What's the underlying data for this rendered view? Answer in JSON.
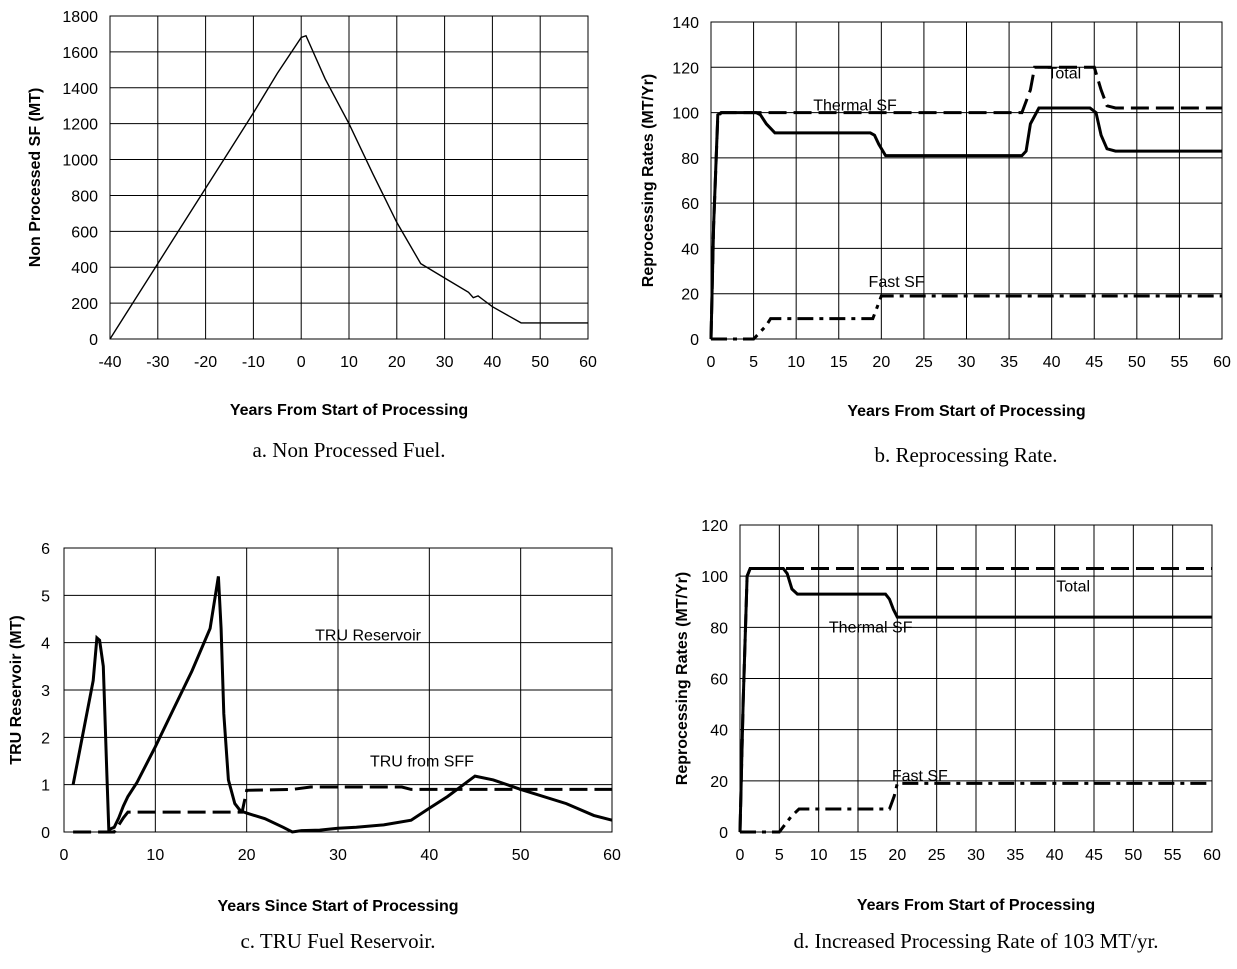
{
  "chart_data": [
    {
      "type": "line",
      "xlabel": "Years From Start of Processing",
      "ylabel": "Non Processed SF (MT)",
      "caption": "a. Non Processed Fuel.",
      "xlim": [
        -40,
        60
      ],
      "ylim": [
        0,
        1800
      ],
      "xticks": [
        -40,
        -30,
        -20,
        -10,
        0,
        10,
        20,
        30,
        40,
        50,
        60
      ],
      "yticks": [
        0,
        200,
        400,
        600,
        800,
        1000,
        1200,
        1400,
        1600,
        1800
      ],
      "grid": true,
      "series": [
        {
          "style": "thin",
          "x": [
            -40,
            -35,
            -30,
            -25,
            -20,
            -15,
            -10,
            -5,
            0,
            1,
            5,
            10,
            15,
            20,
            25,
            30,
            35,
            36,
            37,
            38,
            40,
            46,
            60
          ],
          "y": [
            0,
            210,
            420,
            630,
            840,
            1050,
            1260,
            1480,
            1680,
            1690,
            1450,
            1200,
            920,
            650,
            420,
            340,
            260,
            230,
            240,
            220,
            180,
            90,
            90
          ]
        }
      ],
      "annotations": []
    },
    {
      "type": "line",
      "xlabel": "Years From Start of Processing",
      "ylabel": "Reprocessing Rates (MT/Yr)",
      "caption": "b. Reprocessing Rate.",
      "xlim": [
        0,
        60
      ],
      "ylim": [
        0,
        140
      ],
      "xticks": [
        0,
        5,
        10,
        15,
        20,
        25,
        30,
        35,
        40,
        45,
        50,
        55,
        60
      ],
      "yticks": [
        0,
        20,
        40,
        60,
        80,
        100,
        120,
        140
      ],
      "grid": true,
      "series": [
        {
          "name": "Total",
          "style": "dash",
          "x": [
            0,
            0.3,
            0.8,
            1.2,
            5,
            36.5,
            37.5,
            38,
            45,
            45.8,
            46.5,
            47.5,
            60
          ],
          "y": [
            0,
            50,
            98,
            100,
            100,
            100,
            110,
            120,
            120,
            110,
            103,
            102,
            102
          ]
        },
        {
          "name": "Thermal SF",
          "style": "solid",
          "x": [
            0,
            0.3,
            0.8,
            1.2,
            5.3,
            5.8,
            6.5,
            7.5,
            8.5,
            18.7,
            19.2,
            19.7,
            20.5,
            36.5,
            37,
            37.5,
            38.5,
            44.5,
            45.2,
            45.8,
            46.5,
            47.5,
            60
          ],
          "y": [
            0,
            50,
            99,
            100,
            100,
            99,
            95,
            91,
            91,
            91,
            90,
            86,
            81,
            81,
            83,
            95,
            102,
            102,
            100,
            90,
            84,
            83,
            83
          ]
        },
        {
          "name": "Fast SF",
          "style": "dashdot",
          "x": [
            0,
            5,
            6.5,
            7,
            19,
            19.5,
            20,
            60
          ],
          "y": [
            0,
            0,
            6,
            9,
            9,
            14,
            19,
            19
          ]
        }
      ],
      "annotations": [
        {
          "text": "Total",
          "x": 39.5,
          "y": 115
        },
        {
          "text": "Thermal SF",
          "x": 12,
          "y": 101
        },
        {
          "text": "Fast SF",
          "x": 18.5,
          "y": 23
        }
      ]
    },
    {
      "type": "line",
      "xlabel": "Years Since Start of Processing",
      "ylabel": "TRU Reservoir (MT)",
      "caption": "c. TRU Fuel Reservoir.",
      "xlim": [
        0,
        60
      ],
      "ylim": [
        0,
        6
      ],
      "xticks": [
        0,
        10,
        20,
        30,
        40,
        50,
        60
      ],
      "yticks": [
        0,
        1,
        2,
        3,
        4,
        5,
        6
      ],
      "grid": true,
      "series": [
        {
          "name": "TRU Reservoir",
          "style": "solid",
          "x": [
            1,
            3.2,
            3.6,
            3.9,
            4.3,
            4.7,
            4.9,
            5.5,
            6,
            6.5,
            7,
            8,
            10,
            12,
            14,
            16,
            16.9,
            17.2,
            17.5,
            18,
            18.7,
            19.3,
            20,
            22,
            24,
            25,
            26,
            28,
            30,
            32,
            35,
            38,
            40,
            42,
            45,
            47,
            50,
            55,
            58,
            60
          ],
          "y": [
            1,
            3.2,
            4.1,
            4.05,
            3.5,
            1.2,
            0.05,
            0.1,
            0.3,
            0.55,
            0.75,
            1.05,
            1.8,
            2.6,
            3.4,
            4.3,
            5.4,
            4.3,
            2.5,
            1.1,
            0.6,
            0.45,
            0.4,
            0.28,
            0.1,
            0,
            0.03,
            0.04,
            0.08,
            0.1,
            0.15,
            0.25,
            0.5,
            0.75,
            1.18,
            1.1,
            0.9,
            0.6,
            0.35,
            0.25
          ]
        },
        {
          "name": "TRU from SFF",
          "style": "dash",
          "x": [
            1,
            5.5,
            6.5,
            7,
            19.5,
            20,
            25,
            27,
            37,
            38,
            60
          ],
          "y": [
            0,
            0,
            0.3,
            0.42,
            0.42,
            0.88,
            0.9,
            0.95,
            0.95,
            0.9,
            0.9
          ]
        }
      ],
      "annotations": [
        {
          "text": "TRU Reservoir",
          "x": 27.5,
          "y": 4.05
        },
        {
          "text": "TRU from SFF",
          "x": 33.5,
          "y": 1.38
        }
      ]
    },
    {
      "type": "line",
      "xlabel": "Years From Start of Processing",
      "ylabel": "Reprocessing Rates (MT/Yr)",
      "caption": "d. Increased Processing Rate of 103 MT/yr.",
      "xlim": [
        0,
        60
      ],
      "ylim": [
        0,
        120
      ],
      "xticks": [
        0,
        5,
        10,
        15,
        20,
        25,
        30,
        35,
        40,
        45,
        50,
        55,
        60
      ],
      "yticks": [
        0,
        20,
        40,
        60,
        80,
        100,
        120
      ],
      "grid": true,
      "series": [
        {
          "name": "Total",
          "style": "dash",
          "x": [
            0,
            0.4,
            0.9,
            1.3,
            60
          ],
          "y": [
            0,
            50,
            100,
            103,
            103
          ]
        },
        {
          "name": "Thermal SF",
          "style": "solid",
          "x": [
            0,
            0.4,
            0.9,
            1.3,
            5.5,
            6,
            6.6,
            7.3,
            8,
            18.5,
            19,
            19.5,
            20,
            60
          ],
          "y": [
            0,
            50,
            100,
            103,
            103,
            101,
            95,
            93,
            93,
            93,
            91,
            87,
            84,
            84
          ]
        },
        {
          "name": "Fast SF",
          "style": "dashdot",
          "x": [
            0,
            5,
            6.5,
            7.5,
            19,
            19.6,
            20,
            60
          ],
          "y": [
            0,
            0,
            6,
            9,
            9,
            14,
            19,
            19
          ]
        }
      ],
      "annotations": [
        {
          "text": "Total",
          "x": 40.2,
          "y": 94
        },
        {
          "text": "Thermal SF",
          "x": 11.3,
          "y": 78
        },
        {
          "text": "Fast SF",
          "x": 19.3,
          "y": 20
        }
      ]
    }
  ]
}
